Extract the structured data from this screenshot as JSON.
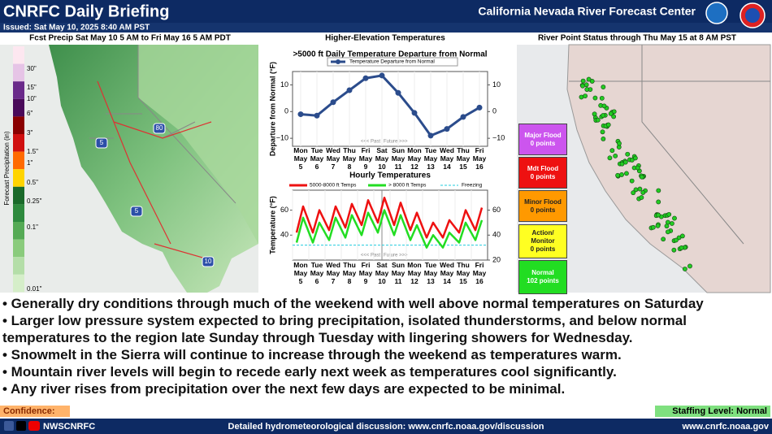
{
  "header": {
    "title": "CNRFC Daily Briefing",
    "center": "California Nevada River Forecast Center",
    "issued": "Issued: Sat May 10, 2025 8:40 AM PST"
  },
  "panels": {
    "precip_title": "Fcst Precip Sat May 10 5 AM to Fri May 16 5 AM PDT",
    "temps_title": "Higher-Elevation Temperatures",
    "river_title": "River Point Status through Thu May 15 at 8 AM PST"
  },
  "precip_legend": {
    "label": "Forecast Precipitation (in)",
    "levels": [
      "30\"",
      "15\"",
      "10\"",
      "6\"",
      "3\"",
      "1.5\"",
      "1\"",
      "0.5\"",
      "0.25\"",
      "0.1\"",
      "0.01\""
    ]
  },
  "map_labels": [
    "80",
    "5",
    "5",
    "10"
  ],
  "chart_data": [
    {
      "type": "line",
      "title": ">5000 ft Daily Temperature Departure from Normal",
      "ylabel": "Departure from Normal (°F)",
      "categories": [
        "Mon May 5",
        "Tue May 6",
        "Wed May 7",
        "Thu May 8",
        "Fri May 9",
        "Sat May 10",
        "Sun May 11",
        "Mon May 12",
        "Tue May 13",
        "Wed May 14",
        "Thu May 15",
        "Fri May 16"
      ],
      "series": [
        {
          "name": "Temperature Departure from Normal",
          "color": "#2b4c8c",
          "values": [
            -1,
            -1.5,
            3.5,
            8,
            12.5,
            13.5,
            7,
            -0.5,
            -9,
            -6.5,
            -2,
            1.5
          ]
        }
      ],
      "ylim": [
        -13,
        15
      ],
      "yticks": [
        {
          "value": -10,
          "label": "−10"
        },
        0,
        10
      ],
      "y2lim": [
        -13,
        15
      ],
      "y2ticks": [
        {
          "value": -10,
          "label": "−10"
        },
        0,
        10
      ],
      "annotations": [
        "<<< Past",
        "Future >>>"
      ],
      "now_index": 5
    },
    {
      "type": "hourly",
      "title": "Hourly Temperatures",
      "ylabel": "Temperature (°F)",
      "categories": [
        "Mon May 5",
        "Tue May 6",
        "Wed May 7",
        "Thu May 8",
        "Fri May 9",
        "Sat May 10",
        "Sun May 11",
        "Mon May 12",
        "Tue May 13",
        "Wed May 14",
        "Thu May 15",
        "Fri May 16"
      ],
      "x": [
        0.25,
        0.65,
        1.25,
        1.65,
        2.25,
        2.65,
        3.25,
        3.65,
        4.25,
        4.65,
        5.25,
        5.65,
        6.25,
        6.65,
        7.25,
        7.65,
        8.25,
        8.65,
        9.25,
        9.65,
        10.25,
        10.65,
        11.25,
        11.65
      ],
      "xlim": [
        0,
        12
      ],
      "series": [
        {
          "name": "5000-8000 ft Temps",
          "color": "#ee1111",
          "values": [
            42,
            63,
            42,
            60,
            44,
            63,
            46,
            65,
            48,
            68,
            50,
            70,
            48,
            66,
            44,
            58,
            38,
            50,
            38,
            52,
            42,
            60,
            44,
            62
          ]
        },
        {
          "name": "> 8000 ft Temps",
          "color": "#22dd22",
          "values": [
            34,
            54,
            34,
            50,
            36,
            54,
            38,
            56,
            40,
            58,
            42,
            60,
            40,
            56,
            36,
            48,
            30,
            40,
            30,
            42,
            34,
            50,
            36,
            52
          ]
        }
      ],
      "freezing": {
        "name": "Freezing",
        "value": 32,
        "color": "#22ccdd"
      },
      "ylim": [
        20,
        76
      ],
      "yticks": [
        40,
        60
      ],
      "y2lim": [
        20,
        76
      ],
      "y2ticks": [
        20,
        40,
        60
      ],
      "annotations": [
        "<<< Past",
        "Future >>>"
      ],
      "now_x": 5.5
    }
  ],
  "river_status": [
    {
      "label": "Major Flood",
      "count": "0 points",
      "color": "#cc55ee",
      "text_color": "#ffffff"
    },
    {
      "label": "Mdt Flood",
      "count": "0 points",
      "color": "#ee1111",
      "text_color": "#ffffff"
    },
    {
      "label": "Minor Flood",
      "count": "0 points",
      "color": "#ff9900",
      "text_color": "#222222"
    },
    {
      "label": "Action/ Monitor",
      "count": "0 points",
      "color": "#ffff22",
      "text_color": "#222222"
    },
    {
      "label": "Normal",
      "count": "102 points",
      "color": "#22dd22",
      "text_color": "#ffffff"
    }
  ],
  "bullets": [
    "• Generally dry conditions through much of the weekend with well above normal temperatures on Saturday",
    "• Larger low pressure system expected to bring precipitation, isolated thunderstorms, and below normal temperatures to the region late Sunday through Tuesday with lingering showers for Wednesday.",
    "• Snowmelt in the Sierra will continue to increase through the weekend as temperatures warm.",
    "• Mountain river levels will begin to recede early next week as temperatures cool significantly.",
    "• Any river rises from precipitation over the next few days are expected to be minimal."
  ],
  "footer": {
    "confidence": "Confidence:",
    "staffing": "Staffing Level: Normal",
    "handle": "NWSCNRFC",
    "discussion": "Detailed hydrometeorological discussion: www.cnrfc.noaa.gov/discussion",
    "website": "www.cnrfc.noaa.gov"
  }
}
